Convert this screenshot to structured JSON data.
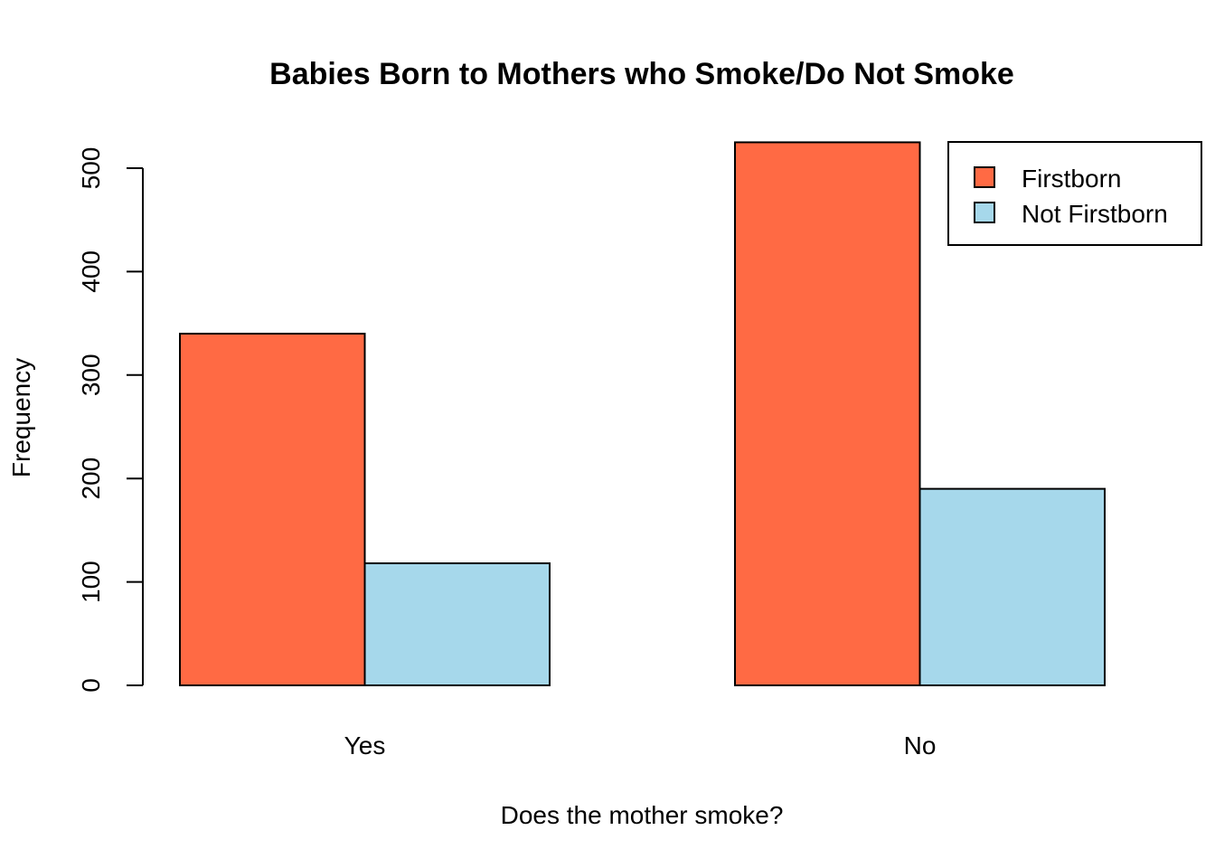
{
  "chart_data": {
    "type": "bar",
    "title": "Babies Born to Mothers who Smoke/Do Not Smoke",
    "xlabel": "Does the mother smoke?",
    "ylabel": "Frequency",
    "categories": [
      "Yes",
      "No"
    ],
    "series": [
      {
        "name": "Firstborn",
        "color": "#FF6A44",
        "values": [
          340,
          525
        ]
      },
      {
        "name": "Not Firstborn",
        "color": "#A6D8EB",
        "values": [
          118,
          190
        ]
      }
    ],
    "ylim": [
      0,
      500
    ],
    "yticks": [
      0,
      100,
      200,
      300,
      400,
      500
    ],
    "grid": false,
    "legend_position": "top-right"
  }
}
